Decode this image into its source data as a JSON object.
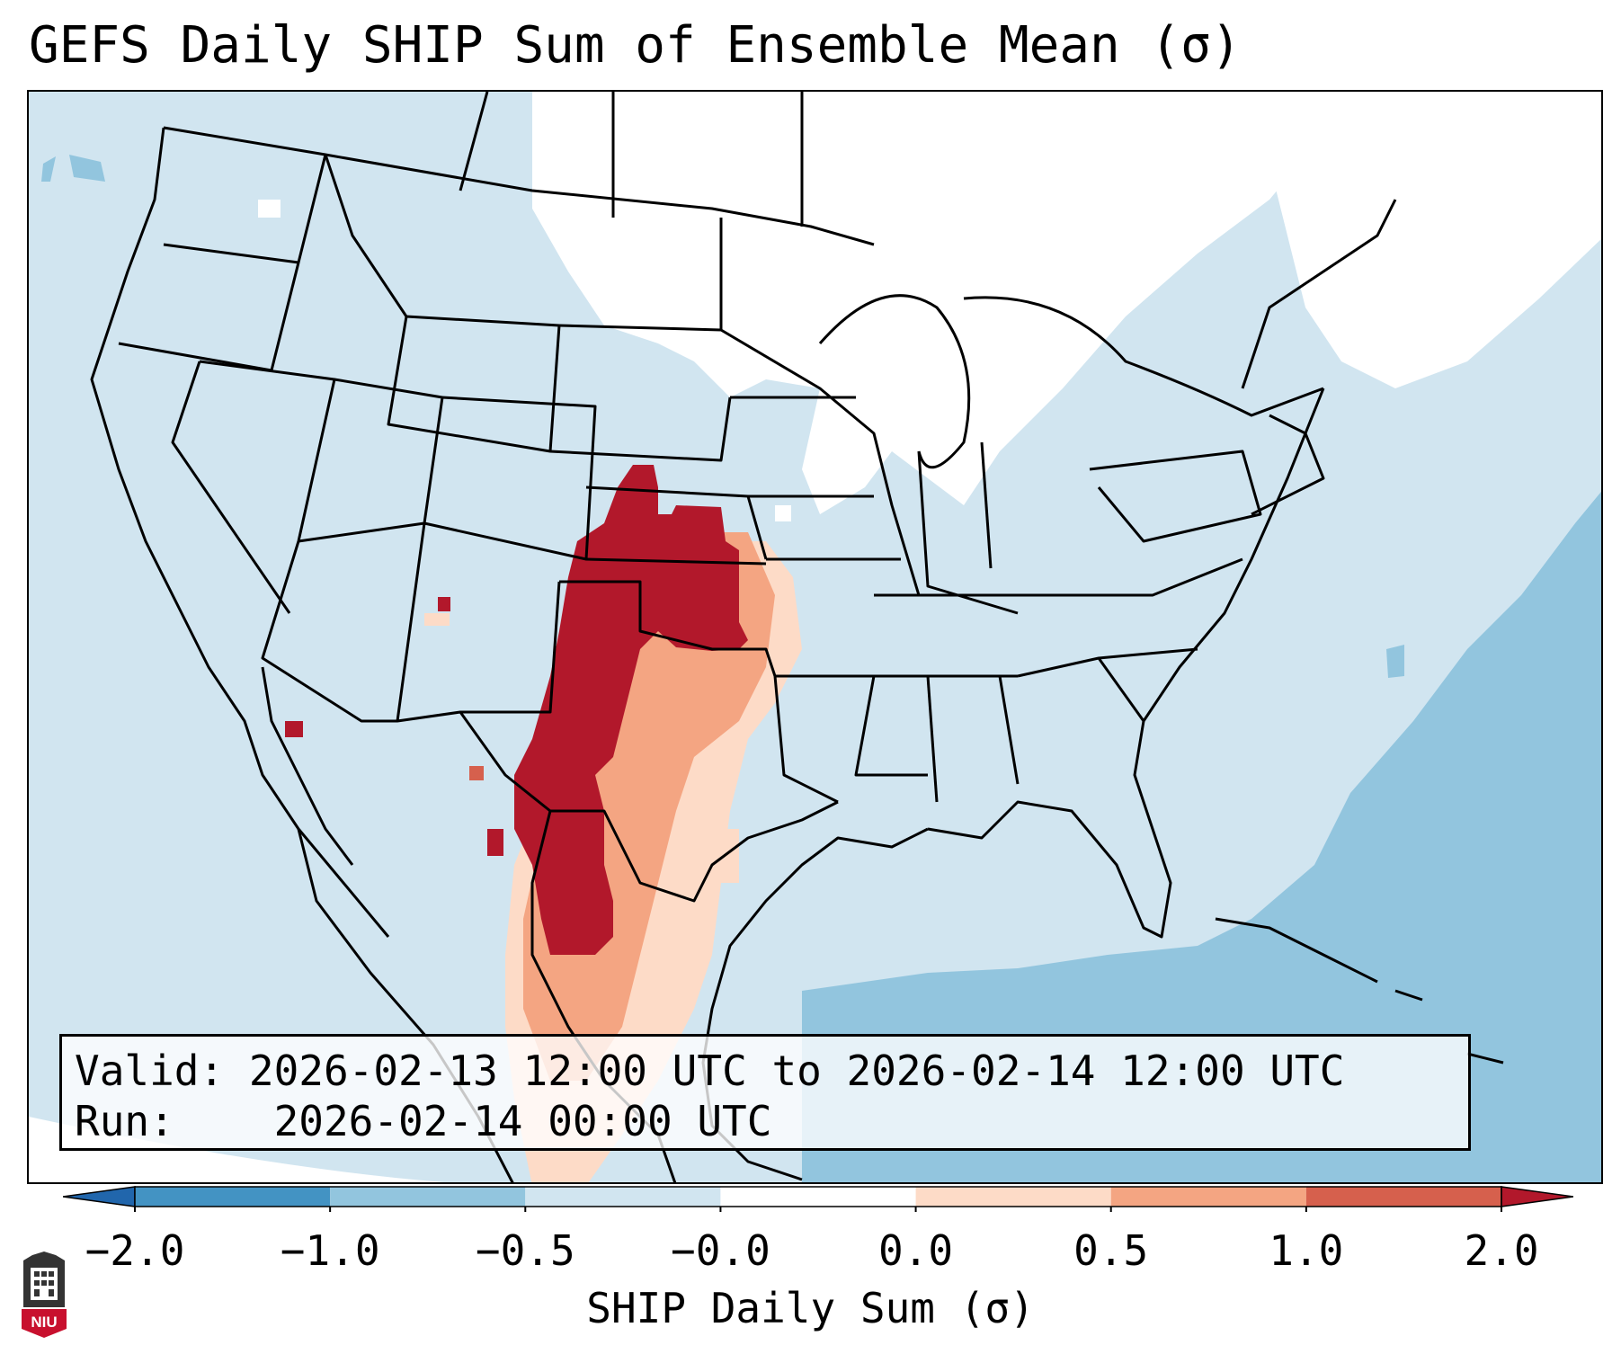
{
  "title": "GEFS Daily SHIP Sum of Ensemble Mean (σ)",
  "info": {
    "valid_label": "Valid:",
    "valid_value": "2026-02-13 12:00 UTC to 2026-02-14 12:00 UTC",
    "run_label": "Run:",
    "run_value": "2026-02-14 00:00 UTC"
  },
  "colorbar": {
    "label": "SHIP Daily Sum (σ)",
    "ticks": [
      "−2.0",
      "−1.0",
      "−0.5",
      "−0.0",
      "0.0",
      "0.5",
      "1.0",
      "2.0"
    ],
    "colors": [
      "#4393c3",
      "#92c5de",
      "#d1e5f0",
      "#ffffff",
      "#fddbc7",
      "#f4a582",
      "#d6604d",
      "#b2182b"
    ],
    "extend_low_color": "#2166ac",
    "extend_high_color": "#b2182b"
  },
  "map": {
    "background_color": "#d1e5f0",
    "ocean_anomaly_color": "#92c5de",
    "high_anomaly_color": "#b2182b",
    "moderate_anomaly_color": "#f4a582",
    "low_anomaly_color": "#fddbc7",
    "border_color": "#000000"
  },
  "logo": {
    "text": "NIU",
    "icon": "university-logo-icon"
  }
}
